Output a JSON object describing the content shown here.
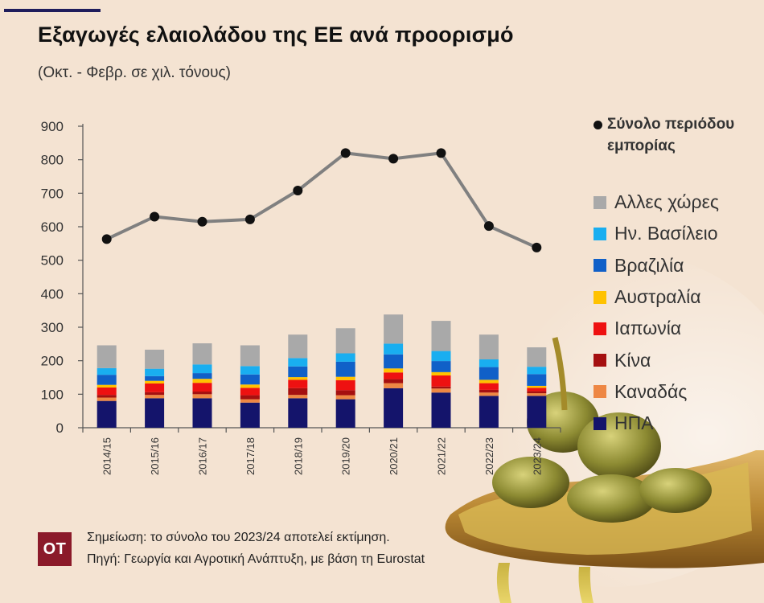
{
  "header": {
    "title": "Εξαγωγές ελαιολάδου της ΕΕ ανά προορισμό",
    "subtitle": "(Οκτ. - Φεβρ. σε χιλ. τόνους)"
  },
  "footer": {
    "logo_text": "ΟΤ",
    "note": "Σημείωση: το σύνολο του 2023/24 αποτελεί εκτίμηση.",
    "source": "Πηγή: Γεωργία και Αγροτική Ανάπτυξη, με βάση τη Eurostat"
  },
  "chart_data": {
    "type": "bar",
    "stacked": true,
    "categories": [
      "2014/15",
      "2015/16",
      "2016/17",
      "2017/18",
      "2018/19",
      "2019/20",
      "2020/21",
      "2021/22",
      "2022/23",
      "2023/24"
    ],
    "yticks": [
      0,
      100,
      200,
      300,
      400,
      500,
      600,
      700,
      800,
      900
    ],
    "ylim": [
      0,
      900
    ],
    "grid": false,
    "legend_position": "right",
    "series": [
      {
        "name": "ΗΠΑ",
        "color": "#14146b",
        "values": [
          80,
          88,
          88,
          75,
          88,
          85,
          118,
          105,
          95,
          95
        ]
      },
      {
        "name": "Καναδάς",
        "color": "#ee8744",
        "values": [
          10,
          10,
          12,
          10,
          10,
          12,
          15,
          12,
          10,
          8
        ]
      },
      {
        "name": "Κίνα",
        "color": "#a51010",
        "values": [
          8,
          8,
          8,
          12,
          20,
          15,
          12,
          6,
          8,
          6
        ]
      },
      {
        "name": "Ιαπωνία",
        "color": "#ee1111",
        "values": [
          22,
          26,
          26,
          22,
          25,
          30,
          20,
          33,
          20,
          10
        ]
      },
      {
        "name": "Αυστραλία",
        "color": "#ffc200",
        "values": [
          8,
          8,
          12,
          10,
          8,
          10,
          12,
          10,
          10,
          6
        ]
      },
      {
        "name": "Βραζιλία",
        "color": "#1060c8",
        "values": [
          30,
          14,
          17,
          30,
          32,
          45,
          42,
          33,
          38,
          35
        ]
      },
      {
        "name": "Ην. Βασίλειο",
        "color": "#19aef0",
        "values": [
          20,
          22,
          26,
          25,
          25,
          25,
          32,
          30,
          23,
          22
        ]
      },
      {
        "name": "Αλλες χώρες",
        "color": "#a9a9a9",
        "values": [
          68,
          57,
          63,
          62,
          70,
          75,
          87,
          90,
          74,
          58
        ]
      }
    ],
    "total": {
      "name": "Σύνολο περιόδου εμπορίας",
      "line_color": "#808080",
      "marker_color": "#111111",
      "values": [
        563,
        630,
        615,
        622,
        708,
        820,
        803,
        820,
        602,
        538
      ]
    }
  }
}
